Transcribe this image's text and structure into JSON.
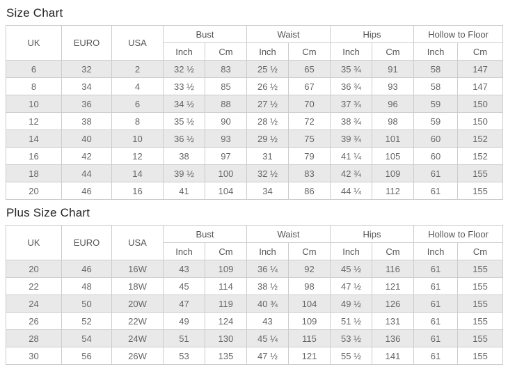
{
  "colors": {
    "border": "#cccccc",
    "stripe": "#e9e9e9",
    "cell-text": "#666666",
    "header-text": "#555555",
    "title-text": "#222222"
  },
  "headers": {
    "uk": "UK",
    "euro": "EURO",
    "usa": "USA",
    "groups": [
      "Bust",
      "Waist",
      "Hips",
      "Hollow to Floor"
    ],
    "inch": "Inch",
    "cm": "Cm"
  },
  "size_chart": {
    "title": "Size Chart",
    "rows": [
      [
        "6",
        "32",
        "2",
        "32 ½",
        "83",
        "25 ½",
        "65",
        "35 ¾",
        "91",
        "58",
        "147"
      ],
      [
        "8",
        "34",
        "4",
        "33 ½",
        "85",
        "26 ½",
        "67",
        "36 ¾",
        "93",
        "58",
        "147"
      ],
      [
        "10",
        "36",
        "6",
        "34 ½",
        "88",
        "27 ½",
        "70",
        "37 ¾",
        "96",
        "59",
        "150"
      ],
      [
        "12",
        "38",
        "8",
        "35 ½",
        "90",
        "28 ½",
        "72",
        "38 ¾",
        "98",
        "59",
        "150"
      ],
      [
        "14",
        "40",
        "10",
        "36 ½",
        "93",
        "29 ½",
        "75",
        "39 ¾",
        "101",
        "60",
        "152"
      ],
      [
        "16",
        "42",
        "12",
        "38",
        "97",
        "31",
        "79",
        "41 ¼",
        "105",
        "60",
        "152"
      ],
      [
        "18",
        "44",
        "14",
        "39 ½",
        "100",
        "32 ½",
        "83",
        "42 ¾",
        "109",
        "61",
        "155"
      ],
      [
        "20",
        "46",
        "16",
        "41",
        "104",
        "34",
        "86",
        "44 ¼",
        "112",
        "61",
        "155"
      ]
    ]
  },
  "plus_size_chart": {
    "title": "Plus Size Chart",
    "rows": [
      [
        "20",
        "46",
        "16W",
        "43",
        "109",
        "36 ¼",
        "92",
        "45 ½",
        "116",
        "61",
        "155"
      ],
      [
        "22",
        "48",
        "18W",
        "45",
        "114",
        "38 ½",
        "98",
        "47 ½",
        "121",
        "61",
        "155"
      ],
      [
        "24",
        "50",
        "20W",
        "47",
        "119",
        "40 ¾",
        "104",
        "49 ½",
        "126",
        "61",
        "155"
      ],
      [
        "26",
        "52",
        "22W",
        "49",
        "124",
        "43",
        "109",
        "51 ½",
        "131",
        "61",
        "155"
      ],
      [
        "28",
        "54",
        "24W",
        "51",
        "130",
        "45 ¼",
        "115",
        "53 ½",
        "136",
        "61",
        "155"
      ],
      [
        "30",
        "56",
        "26W",
        "53",
        "135",
        "47 ½",
        "121",
        "55 ½",
        "141",
        "61",
        "155"
      ]
    ]
  },
  "chart_data": [
    {
      "type": "table",
      "title": "Size Chart",
      "columns": [
        "UK",
        "EURO",
        "USA",
        "Bust Inch",
        "Bust Cm",
        "Waist Inch",
        "Waist Cm",
        "Hips Inch",
        "Hips Cm",
        "Hollow to Floor Inch",
        "Hollow to Floor Cm"
      ],
      "rows": [
        [
          "6",
          "32",
          "2",
          "32 ½",
          "83",
          "25 ½",
          "65",
          "35 ¾",
          "91",
          "58",
          "147"
        ],
        [
          "8",
          "34",
          "4",
          "33 ½",
          "85",
          "26 ½",
          "67",
          "36 ¾",
          "93",
          "58",
          "147"
        ],
        [
          "10",
          "36",
          "6",
          "34 ½",
          "88",
          "27 ½",
          "70",
          "37 ¾",
          "96",
          "59",
          "150"
        ],
        [
          "12",
          "38",
          "8",
          "35 ½",
          "90",
          "28 ½",
          "72",
          "38 ¾",
          "98",
          "59",
          "150"
        ],
        [
          "14",
          "40",
          "10",
          "36 ½",
          "93",
          "29 ½",
          "75",
          "39 ¾",
          "101",
          "60",
          "152"
        ],
        [
          "16",
          "42",
          "12",
          "38",
          "97",
          "31",
          "79",
          "41 ¼",
          "105",
          "60",
          "152"
        ],
        [
          "18",
          "44",
          "14",
          "39 ½",
          "100",
          "32 ½",
          "83",
          "42 ¾",
          "109",
          "61",
          "155"
        ],
        [
          "20",
          "46",
          "16",
          "41",
          "104",
          "34",
          "86",
          "44 ¼",
          "112",
          "61",
          "155"
        ]
      ]
    },
    {
      "type": "table",
      "title": "Plus Size Chart",
      "columns": [
        "UK",
        "EURO",
        "USA",
        "Bust Inch",
        "Bust Cm",
        "Waist Inch",
        "Waist Cm",
        "Hips Inch",
        "Hips Cm",
        "Hollow to Floor Inch",
        "Hollow to Floor Cm"
      ],
      "rows": [
        [
          "20",
          "46",
          "16W",
          "43",
          "109",
          "36 ¼",
          "92",
          "45 ½",
          "116",
          "61",
          "155"
        ],
        [
          "22",
          "48",
          "18W",
          "45",
          "114",
          "38 ½",
          "98",
          "47 ½",
          "121",
          "61",
          "155"
        ],
        [
          "24",
          "50",
          "20W",
          "47",
          "119",
          "40 ¾",
          "104",
          "49 ½",
          "126",
          "61",
          "155"
        ],
        [
          "26",
          "52",
          "22W",
          "49",
          "124",
          "43",
          "109",
          "51 ½",
          "131",
          "61",
          "155"
        ],
        [
          "28",
          "54",
          "24W",
          "51",
          "130",
          "45 ¼",
          "115",
          "53 ½",
          "136",
          "61",
          "155"
        ],
        [
          "30",
          "56",
          "26W",
          "53",
          "135",
          "47 ½",
          "121",
          "55 ½",
          "141",
          "61",
          "155"
        ]
      ]
    }
  ]
}
